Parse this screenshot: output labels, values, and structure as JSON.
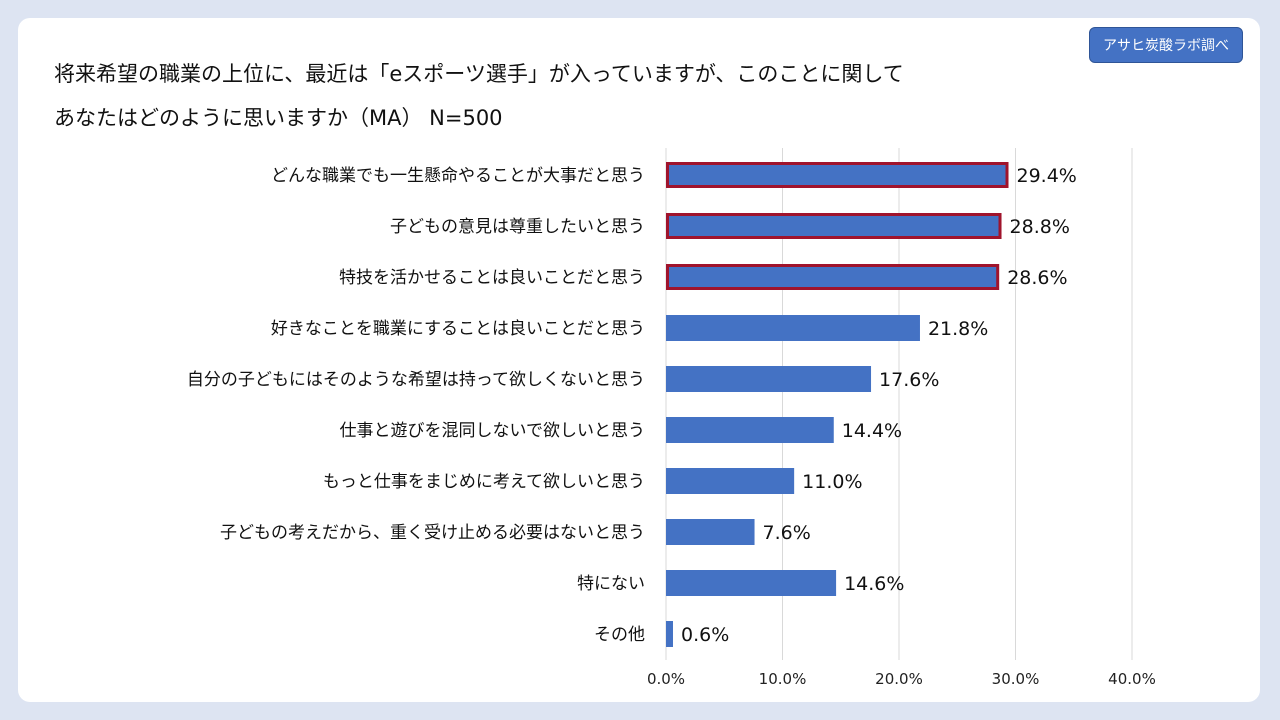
{
  "badge": "アサヒ炭酸ラボ調べ",
  "title": {
    "line1": "将来希望の職業の上位に、最近は「eスポーツ選手」が入っていますが、このことに関して",
    "line2": "あなたはどのように思いますか（MA） N=500"
  },
  "chart_data": {
    "type": "bar",
    "orientation": "horizontal",
    "categories": [
      "どんな職業でも一生懸命やることが大事だと思う",
      "子どもの意見は尊重したいと思う",
      "特技を活かせることは良いことだと思う",
      "好きなことを職業にすることは良いことだと思う",
      "自分の子どもにはそのような希望は持って欲しくないと思う",
      "仕事と遊びを混同しないで欲しいと思う",
      "もっと仕事をまじめに考えて欲しいと思う",
      "子どもの考えだから、重く受け止める必要はないと思う",
      "特にない",
      "その他"
    ],
    "values": [
      29.4,
      28.8,
      28.6,
      21.8,
      17.6,
      14.4,
      11.0,
      7.6,
      14.6,
      0.6
    ],
    "value_labels": [
      "29.4%",
      "28.8%",
      "28.6%",
      "21.8%",
      "17.6%",
      "14.4%",
      "11.0%",
      "7.6%",
      "14.6%",
      "0.6%"
    ],
    "highlighted": [
      true,
      true,
      true,
      false,
      false,
      false,
      false,
      false,
      false,
      false
    ],
    "xlim": [
      0,
      40
    ],
    "xticks": [
      0,
      10,
      20,
      30,
      40
    ],
    "xtick_labels": [
      "0.0%",
      "10.0%",
      "20.0%",
      "30.0%",
      "40.0%"
    ],
    "grid": true,
    "bar_color": "#4472c4",
    "highlight_border_color": "#a0142c",
    "title": "",
    "xlabel": "",
    "ylabel": ""
  }
}
